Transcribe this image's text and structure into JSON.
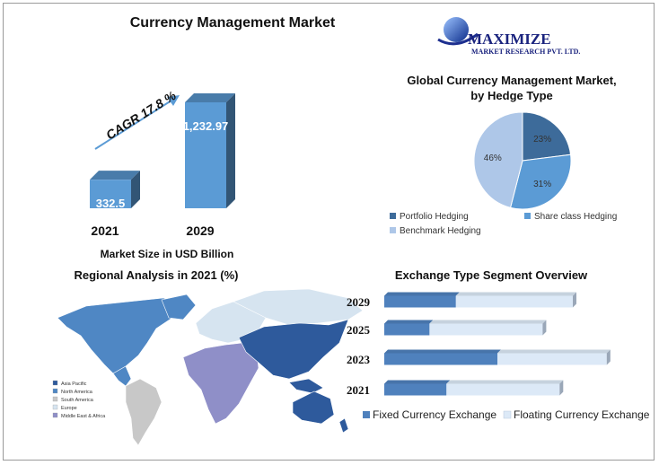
{
  "page": {
    "title": "Currency Management Market",
    "logo": {
      "name": "MAXIMIZE",
      "subtitle": "MARKET RESEARCH PVT. LTD."
    },
    "colors": {
      "dark_blue": "#3d6b9a",
      "mid_blue": "#5b9bd5",
      "light_blue": "#aec7e8",
      "frame": "#9a9a9a"
    }
  },
  "chart_data": [
    {
      "type": "bar",
      "title": "",
      "categories": [
        "2021",
        "2029"
      ],
      "values": [
        332.5,
        1232.97
      ],
      "value_labels": [
        "332.5",
        "1,232.97"
      ],
      "xlabel": "Market Size in USD Billion",
      "annotation": "CAGR 17.8 %",
      "color": "#5b9bd5"
    },
    {
      "type": "pie",
      "title": "Global Currency Management Market, by Hedge Type",
      "title_lines": [
        "Global Currency Management Market,",
        "by Hedge Type"
      ],
      "labels": [
        "Portfolio Hedging",
        "Share class Hedging",
        "Benchmark Hedging"
      ],
      "values": [
        23,
        31,
        46
      ],
      "value_labels": [
        "23%",
        "31%",
        "46%"
      ],
      "colors": [
        "#3d6b9a",
        "#5b9bd5",
        "#aec7e8"
      ],
      "legend": "bottom"
    },
    {
      "type": "bar",
      "orientation": "horizontal",
      "stacked": true,
      "title": "Exchange Type Segment Overview",
      "categories": [
        "2029",
        "2025",
        "2023",
        "2021"
      ],
      "series": [
        {
          "name": "Fixed Currency Exchange",
          "values": [
            38,
            24,
            60,
            33
          ],
          "color": "#4f81bd"
        },
        {
          "name": "Floating Currency Exchange",
          "values": [
            62,
            60,
            58,
            60
          ],
          "color": "#dce9f7"
        }
      ],
      "legend": "bottom"
    }
  ],
  "map": {
    "title": "Regional Analysis in 2021 (%)",
    "legend": [
      {
        "label": "Asia Pacific",
        "color": "#2e5a9c"
      },
      {
        "label": "North America",
        "color": "#4f87c4"
      },
      {
        "label": "South America",
        "color": "#c8c8c8"
      },
      {
        "label": "Europe",
        "color": "#d6e4f0"
      },
      {
        "label": "Middle East & Africa",
        "color": "#8f8fc8"
      }
    ]
  }
}
